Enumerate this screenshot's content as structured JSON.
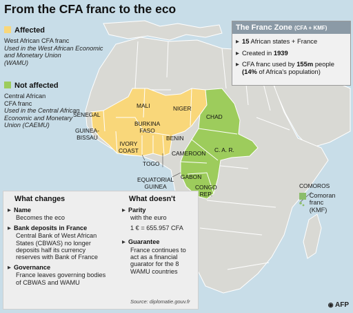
{
  "title": "From the CFA franc to the eco",
  "colors": {
    "ocean": "#c8dde8",
    "land": "#d9d9d4",
    "affected": "#f9d77a",
    "not_affected": "#9dcc5c",
    "comoran": "#8cbd6c",
    "header_bg": "#8b9aa6",
    "box_bg": "#eeeeee"
  },
  "legend": {
    "affected": {
      "heading": "Affected",
      "line1": "West African CFA franc",
      "italic": "Used in the West African Economic and Monetary Union",
      "abbr": "(WAMU)"
    },
    "not_affected": {
      "heading": "Not affected",
      "line1": "Central African",
      "line2": "CFA franc",
      "italic": "Used in the Central African Economic and Monetary",
      "abbr": "Union (CAEMU)"
    },
    "comoran": {
      "title": "COMOROS",
      "label": "Comoran franc",
      "abbr": "(KMF)"
    }
  },
  "franc_zone": {
    "header": "The Franc Zone",
    "header_small": "(CFA + KMF)",
    "item1_bold": "15",
    "item1_rest": "African states + France",
    "item2_text": "Created in",
    "item2_bold": "1939",
    "item3_text": "CFA franc used by",
    "item3_bold": "155m",
    "item3_rest": "people",
    "item3_paren_bold": "(14%",
    "item3_paren_rest": "of Africa's population)"
  },
  "countries": {
    "senegal": "SENEGAL",
    "guinea_bissau_1": "GUINEA-",
    "guinea_bissau_2": "BISSAU",
    "mali": "MALI",
    "niger": "NIGER",
    "burkina_1": "BURKINA",
    "burkina_2": "FASO",
    "ivory_1": "IVORY",
    "ivory_2": "COAST",
    "benin": "BENIN",
    "togo": "TOGO",
    "chad": "CHAD",
    "car": "C. A. R.",
    "cameroon": "CAMEROON",
    "eq_guinea_1": "EQUATORIAL",
    "eq_guinea_2": "GUINEA",
    "gabon": "GABON",
    "congo_1": "CONGO",
    "congo_2": "REP."
  },
  "what_changes": {
    "heading": "What changes",
    "items": [
      {
        "title": "Name",
        "text": "Becomes the eco"
      },
      {
        "title": "Bank deposits in France",
        "text": "Central Bank of West African States (CBWAS) no longer deposits half its currency reserves with Bank of France"
      },
      {
        "title": "Governance",
        "text": "France leaves governing bodies of CBWAS and WAMU"
      }
    ]
  },
  "what_doesnt": {
    "heading": "What doesn't",
    "items": [
      {
        "title": "Parity",
        "text": "with the euro",
        "extra": "1 € = 655.957 CFA"
      },
      {
        "title": "Guarantee",
        "text": "France continues to act as a financial guarator for the 8 WAMU countries"
      }
    ]
  },
  "source": "Source: diplomatie.gouv.fr",
  "credit": "AFP"
}
